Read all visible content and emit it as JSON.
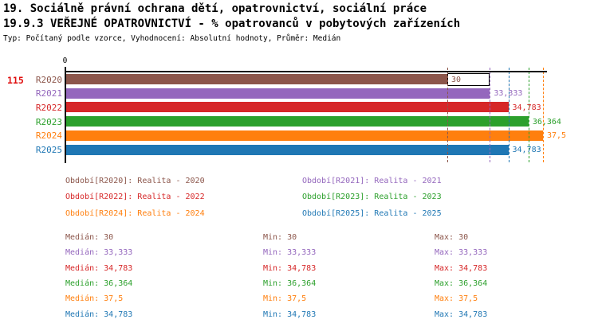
{
  "header": {
    "title1": "19. Sociálně právní ochrana dětí, opatrovnictví, sociální práce",
    "title2": "19.9.3 VEŘEJNÉ OPATROVNICTVÍ - % opatrovanců v pobytových zařízeních",
    "subtitle": "Typ: Počítaný podle vzorce, Vyhodnocení: Absolutní hodnoty, Průměr: Medián"
  },
  "indicator_number": "115",
  "indicator_color": "#e01010",
  "chart_data": {
    "type": "bar",
    "orientation": "horizontal",
    "categories": [
      "R2020",
      "R2021",
      "R2022",
      "R2023",
      "R2024",
      "R2025"
    ],
    "values": [
      30,
      33.333,
      34.783,
      36.364,
      37.5,
      34.783
    ],
    "value_labels": [
      "30",
      "33,333",
      "34,783",
      "36,364",
      "37,5",
      "34,783"
    ],
    "colors": [
      "#8c564b",
      "#9467bd",
      "#d62728",
      "#2ca02c",
      "#ff7f0e",
      "#1f77b4"
    ],
    "xlim": [
      0,
      37.8
    ],
    "x_tick_labels": [
      "0"
    ],
    "grid": false,
    "median_marker_values": [
      30,
      33.333,
      34.783,
      36.364,
      37.5,
      34.783
    ],
    "overlay_box": {
      "category": "R2020",
      "from": 30,
      "to": 33.333,
      "fill": "#ffffff",
      "border": "#000000"
    },
    "legend_position": "bottom"
  },
  "legend": {
    "items": [
      {
        "label": "Období[R2020]: Realita - 2020",
        "color": "#8c564b"
      },
      {
        "label": "Období[R2021]: Realita - 2021",
        "color": "#9467bd"
      },
      {
        "label": "Období[R2022]: Realita - 2022",
        "color": "#d62728"
      },
      {
        "label": "Období[R2023]: Realita - 2023",
        "color": "#2ca02c"
      },
      {
        "label": "Období[R2024]: Realita - 2024",
        "color": "#ff7f0e"
      },
      {
        "label": "Období[R2025]: Realita - 2025",
        "color": "#1f77b4"
      }
    ]
  },
  "stats": {
    "median_label": "Medián:",
    "min_label": "Min:",
    "max_label": "Max:",
    "rows": [
      {
        "median": "30",
        "min": "30",
        "max": "30",
        "color": "#8c564b"
      },
      {
        "median": "33,333",
        "min": "33,333",
        "max": "33,333",
        "color": "#9467bd"
      },
      {
        "median": "34,783",
        "min": "34,783",
        "max": "34,783",
        "color": "#d62728"
      },
      {
        "median": "36,364",
        "min": "36,364",
        "max": "36,364",
        "color": "#2ca02c"
      },
      {
        "median": "37,5",
        "min": "37,5",
        "max": "37,5",
        "color": "#ff7f0e"
      },
      {
        "median": "34,783",
        "min": "34,783",
        "max": "34,783",
        "color": "#1f77b4"
      }
    ]
  }
}
